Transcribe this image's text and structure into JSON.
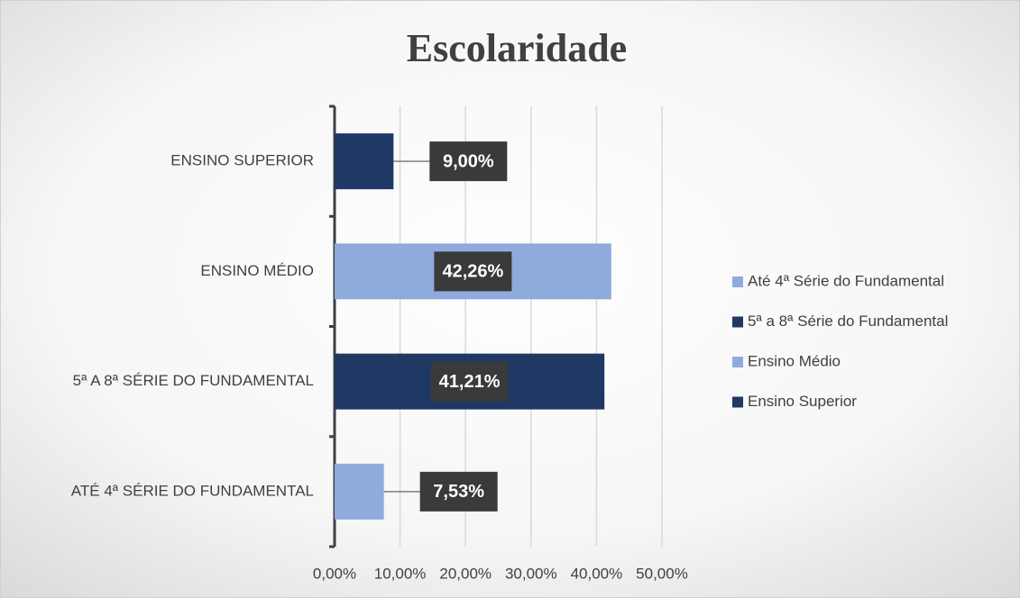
{
  "chart_data": {
    "type": "hbar",
    "title": "Escolaridade",
    "categories": [
      "ATÉ 4ª SÉRIE DO FUNDAMENTAL",
      "5ª A 8ª SÉRIE DO FUNDAMENTAL",
      "ENSINO MÉDIO",
      "ENSINO SUPERIOR"
    ],
    "series": [
      {
        "name": "Até 4ª Série do Fundamental",
        "color": "#8faadc",
        "values": [
          7.53,
          null,
          null,
          null
        ],
        "value_labels": [
          "7,53%",
          null,
          null,
          null
        ]
      },
      {
        "name": "5ª a 8ª Série do Fundamental",
        "color": "#1f3864",
        "values": [
          null,
          41.21,
          null,
          null
        ],
        "value_labels": [
          null,
          "41,21%",
          null,
          null
        ]
      },
      {
        "name": "Ensino Médio",
        "color": "#8faadc",
        "values": [
          null,
          null,
          42.26,
          null
        ],
        "value_labels": [
          null,
          null,
          "42,26%",
          null
        ]
      },
      {
        "name": "Ensino Superior",
        "color": "#1f3864",
        "values": [
          null,
          null,
          null,
          9.0
        ],
        "value_labels": [
          null,
          null,
          null,
          "9,00%"
        ]
      }
    ],
    "xlim": [
      0,
      50
    ],
    "xticks": [
      {
        "value": 0,
        "label": "0,00%"
      },
      {
        "value": 10,
        "label": "10,00%"
      },
      {
        "value": 20,
        "label": "20,00%"
      },
      {
        "value": 30,
        "label": "30,00%"
      },
      {
        "value": 40,
        "label": "40,00%"
      },
      {
        "value": 50,
        "label": "50,00%"
      }
    ],
    "grid": true,
    "legend": "right"
  }
}
